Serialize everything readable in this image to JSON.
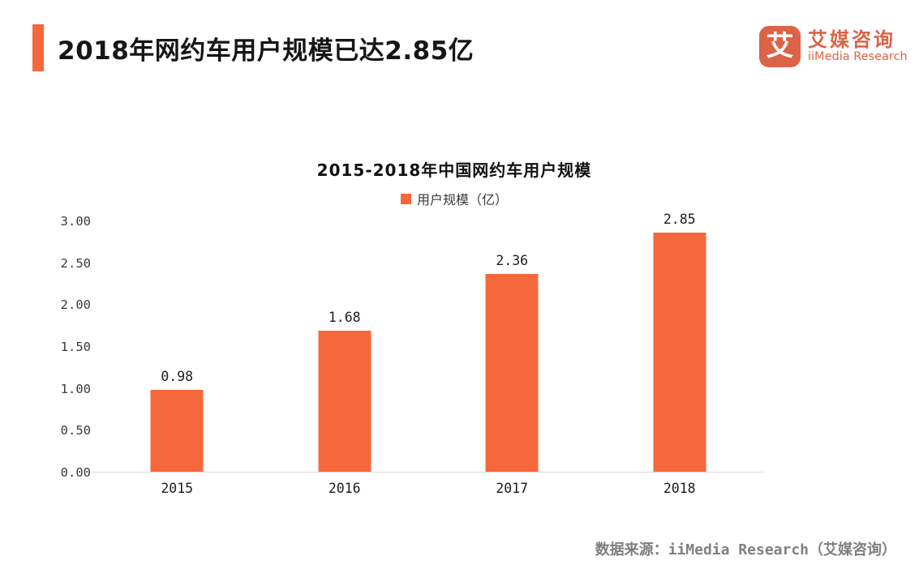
{
  "header": {
    "title": "2018年网约车用户规模已达2.85亿",
    "accent_color": "#F5683B"
  },
  "logo": {
    "icon_char": "艾",
    "name_cn": "艾媒咨询",
    "name_en": "iiMedia Research",
    "color": "#DC6347"
  },
  "chart_data": {
    "type": "bar",
    "title": "2015-2018年中国网约车用户规模",
    "legend": {
      "label": "用户规模（亿）",
      "position": "top-center",
      "swatch_color": "#F5683B"
    },
    "categories": [
      "2015",
      "2016",
      "2017",
      "2018"
    ],
    "series": [
      {
        "name": "用户规模（亿）",
        "values": [
          0.98,
          1.68,
          2.36,
          2.85
        ]
      }
    ],
    "value_labels": [
      "0.98",
      "1.68",
      "2.36",
      "2.85"
    ],
    "xlabel": "",
    "ylabel": "",
    "ylim": [
      0,
      3
    ],
    "yticks": [
      "0.00",
      "0.50",
      "1.00",
      "1.50",
      "2.00",
      "2.50",
      "3.00"
    ],
    "grid": false,
    "bar_color": "#F5683B",
    "baseline_color": "#d9d9d9"
  },
  "footer": {
    "source": "数据来源：iiMedia Research（艾媒咨询）"
  }
}
